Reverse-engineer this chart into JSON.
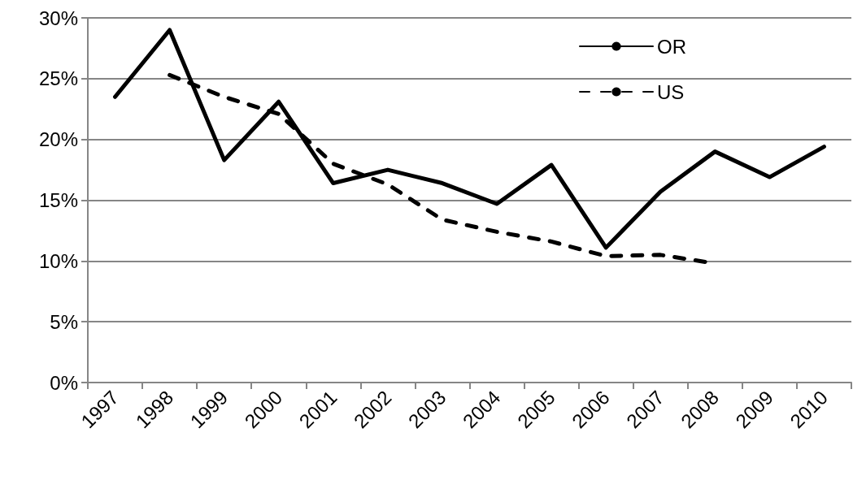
{
  "chart_data": {
    "type": "line",
    "categories": [
      "1997",
      "1998",
      "1999",
      "2000",
      "2001",
      "2002",
      "2003",
      "2004",
      "2005",
      "2006",
      "2007",
      "2008",
      "2009",
      "2010"
    ],
    "series": [
      {
        "name": "OR",
        "color": "#000000",
        "line_style": "solid",
        "values": [
          23.5,
          29.0,
          18.3,
          23.1,
          16.4,
          17.5,
          16.4,
          14.7,
          17.9,
          11.1,
          15.7,
          19.0,
          16.9,
          19.4
        ]
      },
      {
        "name": "US",
        "color": "#000000",
        "line_style": "dashed",
        "values": [
          null,
          25.3,
          23.5,
          22.1,
          18.0,
          16.3,
          13.4,
          12.4,
          11.6,
          10.4,
          10.5,
          9.8,
          null,
          null
        ]
      }
    ],
    "ylim": [
      0,
      30
    ],
    "yticks": [
      {
        "value": 0,
        "label": "0%"
      },
      {
        "value": 5,
        "label": "5%"
      },
      {
        "value": 10,
        "label": "10%"
      },
      {
        "value": 15,
        "label": "15%"
      },
      {
        "value": 20,
        "label": "20%"
      },
      {
        "value": 25,
        "label": "25%"
      },
      {
        "value": 30,
        "label": "30%"
      }
    ],
    "grid": "y",
    "legend": "top right",
    "marker": "none"
  }
}
